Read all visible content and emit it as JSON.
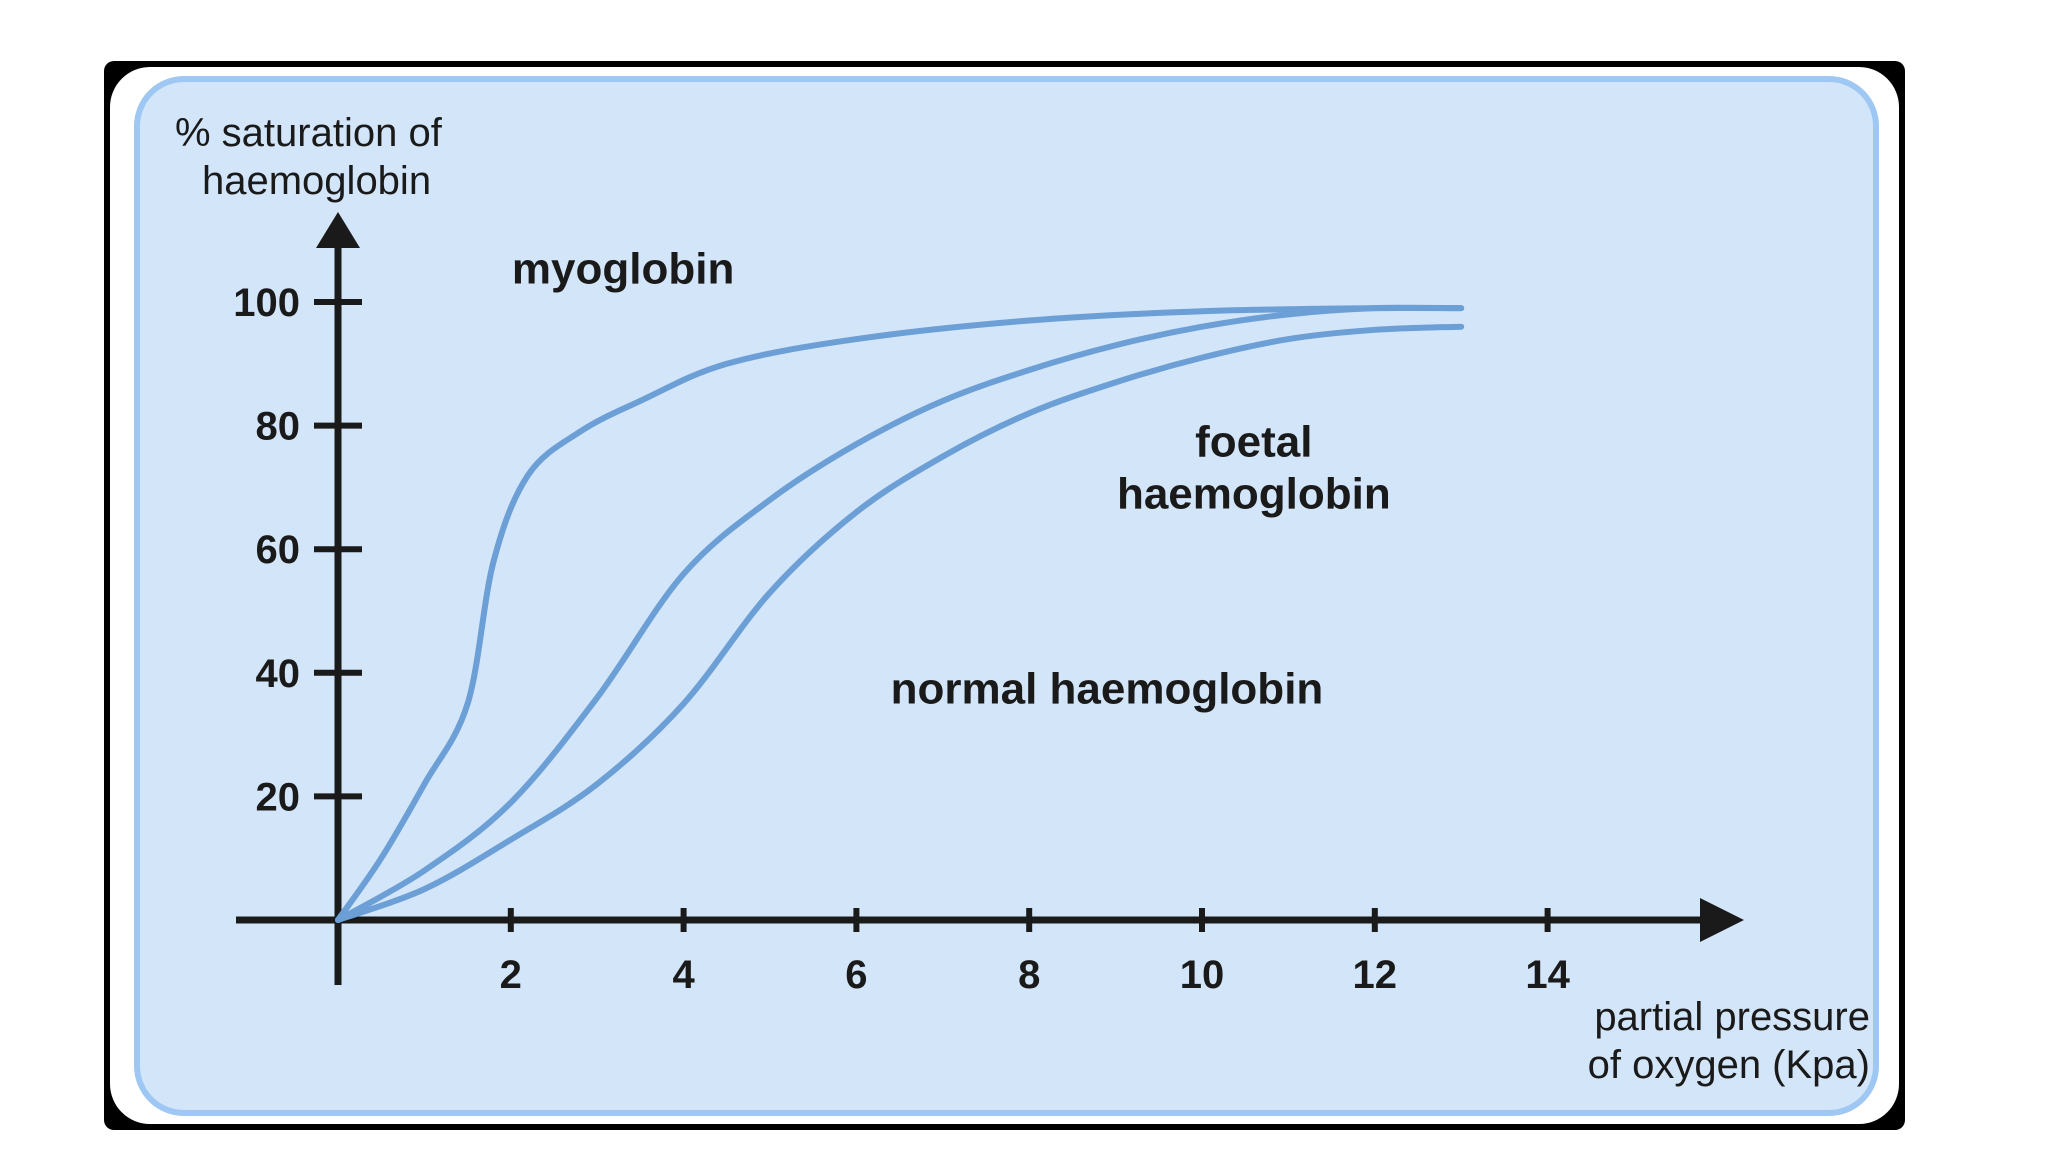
{
  "chart_data": {
    "type": "line",
    "ylabel_lines": [
      "% saturation of",
      "haemoglobin"
    ],
    "xlabel_lines": [
      "partial pressure",
      "of oxygen (Kpa)"
    ],
    "xticks": [
      2,
      4,
      6,
      8,
      10,
      12,
      14
    ],
    "yticks": [
      20,
      40,
      60,
      80,
      100
    ],
    "xlim": [
      0,
      16
    ],
    "ylim": [
      0,
      100
    ],
    "grid": false,
    "series": [
      {
        "name": "myoglobin",
        "x": [
          0,
          0.5,
          1.0,
          1.5,
          1.8,
          2.2,
          2.8,
          3.5,
          4.5,
          6,
          8,
          10,
          12,
          13
        ],
        "y": [
          0,
          10,
          22,
          35,
          58,
          72,
          79,
          84,
          90,
          94,
          97,
          98.5,
          99,
          99
        ]
      },
      {
        "name": "foetal haemoglobin",
        "x": [
          0,
          1,
          2,
          3,
          4,
          5,
          6,
          7,
          8,
          9,
          10,
          11,
          12,
          13
        ],
        "y": [
          0,
          8,
          19,
          36,
          56,
          68,
          77,
          84,
          89,
          93,
          96,
          98,
          99,
          99
        ]
      },
      {
        "name": "normal haemoglobin",
        "x": [
          0,
          1,
          2,
          3,
          4,
          5,
          6,
          7,
          8,
          9,
          10,
          11,
          12,
          13
        ],
        "y": [
          0,
          5,
          13,
          22,
          35,
          53,
          66,
          75,
          82,
          87,
          91,
          94,
          95.5,
          96
        ]
      }
    ],
    "annotations": [
      {
        "text_lines": [
          "myoglobin"
        ],
        "x": 3.3,
        "y": 103
      },
      {
        "text_lines": [
          "foetal",
          "haemoglobin"
        ],
        "x": 10.6,
        "y": 75
      },
      {
        "text_lines": [
          "normal haemoglobin"
        ],
        "x": 8.9,
        "y": 35
      }
    ],
    "colors": {
      "curve": "#6b9fd6",
      "axis": "#1a1a1a",
      "panel": "#d3e5f9",
      "panel_border": "#9ec8f3"
    }
  }
}
